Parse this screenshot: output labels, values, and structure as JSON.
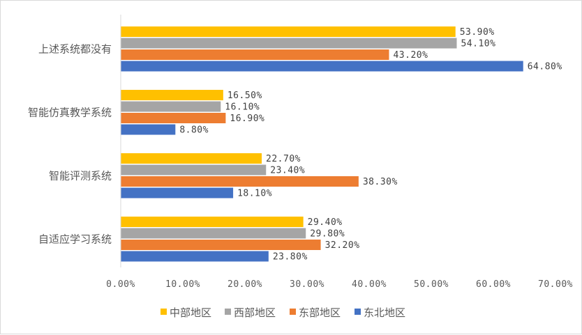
{
  "chart_data": {
    "type": "bar",
    "orientation": "horizontal",
    "categories": [
      "上述系统都没有",
      "智能仿真教学系统",
      "智能评测系统",
      "自适应学习系统"
    ],
    "series": [
      {
        "name": "中部地区",
        "color": "#FFC000",
        "values": [
          53.9,
          16.5,
          22.7,
          29.4
        ],
        "labels": [
          "53.90%",
          "16.50%",
          "22.70%",
          "29.40%"
        ]
      },
      {
        "name": "西部地区",
        "color": "#A5A5A5",
        "values": [
          54.1,
          16.1,
          23.4,
          29.8
        ],
        "labels": [
          "54.10%",
          "16.10%",
          "23.40%",
          "29.80%"
        ]
      },
      {
        "name": "东部地区",
        "color": "#ED7D31",
        "values": [
          43.2,
          16.9,
          38.3,
          32.2
        ],
        "labels": [
          "43.20%",
          "16.90%",
          "38.30%",
          "32.20%"
        ]
      },
      {
        "name": "东北地区",
        "color": "#4472C4",
        "values": [
          64.8,
          8.8,
          18.1,
          23.8
        ],
        "labels": [
          "64.80%",
          "8.80%",
          "18.10%",
          "23.80%"
        ]
      }
    ],
    "x_ticks": [
      "0.00%",
      "10.00%",
      "20.00%",
      "30.00%",
      "40.00%",
      "50.00%",
      "60.00%",
      "70.00%"
    ],
    "xlim": [
      0,
      70
    ],
    "grid": false,
    "legend_position": "bottom",
    "title": "",
    "xlabel": "",
    "ylabel": ""
  }
}
